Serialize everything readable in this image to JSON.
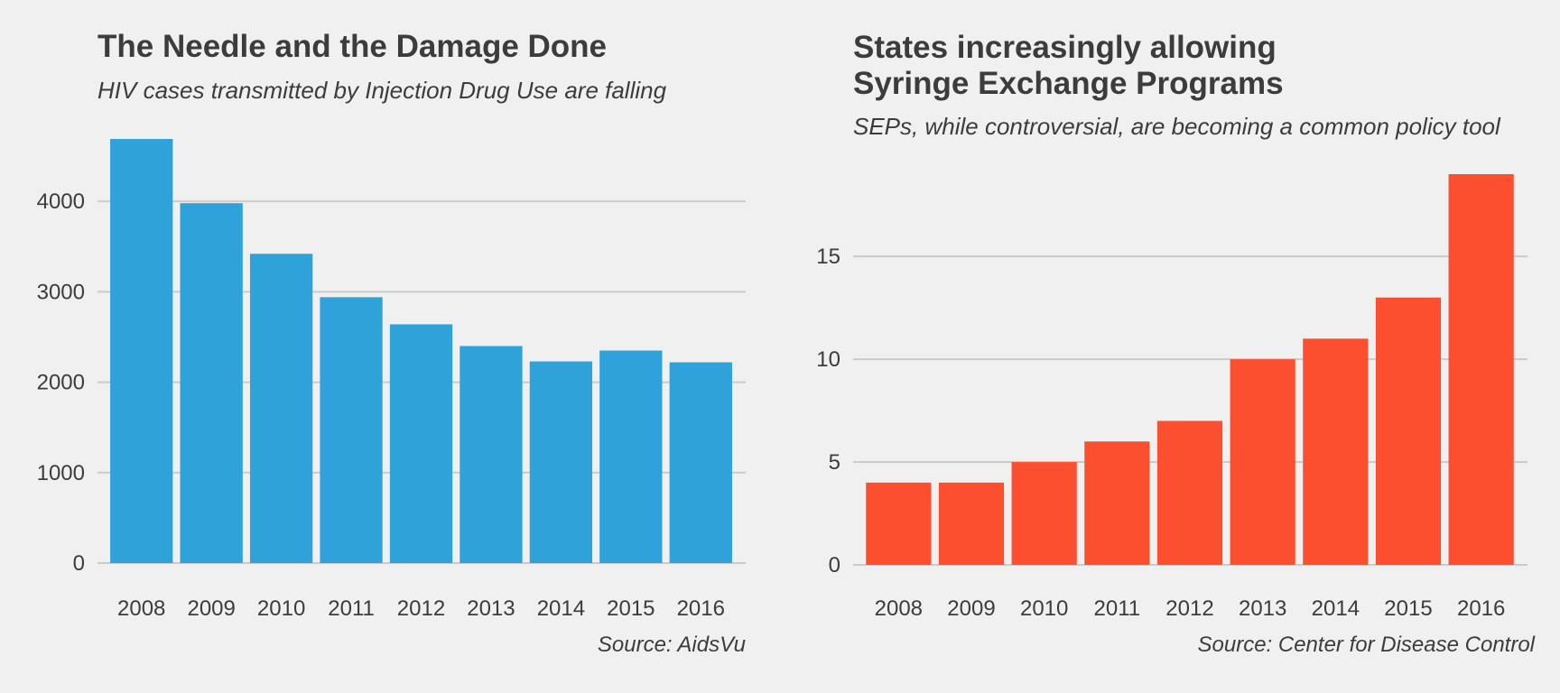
{
  "chart_data": [
    {
      "type": "bar",
      "title": "The Needle and the Damage Done",
      "subtitle": "HIV cases transmitted by Injection Drug Use are falling",
      "source": "Source: AidsVu",
      "xlabel": "",
      "ylabel": "",
      "categories": [
        "2008",
        "2009",
        "2010",
        "2011",
        "2012",
        "2013",
        "2014",
        "2015",
        "2016"
      ],
      "values": [
        4690,
        3980,
        3420,
        2940,
        2640,
        2400,
        2230,
        2350,
        2220
      ],
      "ylim": [
        0,
        4690
      ],
      "yticks": [
        0,
        1000,
        2000,
        3000,
        4000
      ],
      "ytick_labels": [
        "0",
        "1000",
        "2000",
        "3000",
        "4000"
      ],
      "grid": true,
      "legend": "none",
      "color": "#30a2da"
    },
    {
      "type": "bar",
      "title": "States increasingly allowing\nSyringe Exchange Programs",
      "subtitle": "SEPs, while controversial, are becoming a common policy tool",
      "source": "Source: Center for Disease Control",
      "xlabel": "",
      "ylabel": "",
      "categories": [
        "2008",
        "2009",
        "2010",
        "2011",
        "2012",
        "2013",
        "2014",
        "2015",
        "2016"
      ],
      "values": [
        4,
        4,
        5,
        6,
        7,
        10,
        11,
        13,
        19
      ],
      "ylim": [
        0,
        19
      ],
      "yticks": [
        0,
        5,
        10,
        15
      ],
      "ytick_labels": [
        "0",
        "5",
        "10",
        "15"
      ],
      "grid": true,
      "legend": "none",
      "color": "#fc4f30"
    }
  ]
}
